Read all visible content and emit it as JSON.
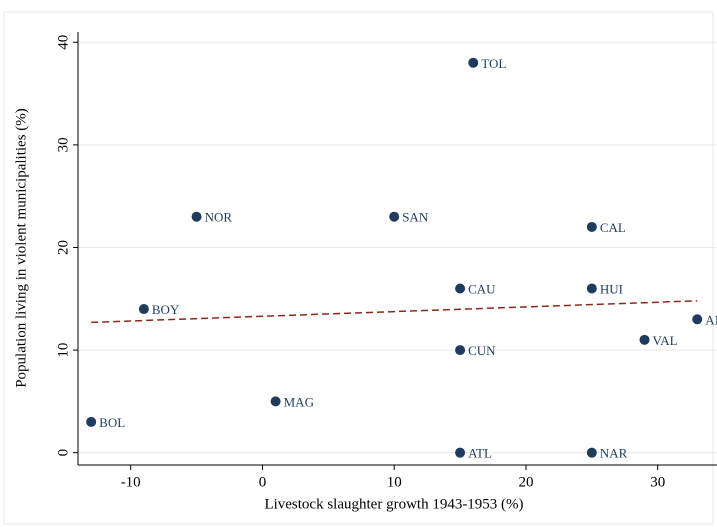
{
  "chart_data": {
    "type": "scatter",
    "xlabel": "Livestock slaughter growth 1943-1953 (%)",
    "ylabel": "Population living in violent municipalities (%)",
    "labels": [
      "TOL",
      "NOR",
      "SAN",
      "CAL",
      "CAU",
      "HUI",
      "BOY",
      "ANT",
      "VAL",
      "CUN",
      "MAG",
      "BOL",
      "ATL",
      "NAR"
    ],
    "x": [
      16,
      -5,
      10,
      25,
      15,
      25,
      -9,
      33,
      29,
      15,
      1,
      -13,
      15,
      25
    ],
    "values": [
      38,
      23,
      23,
      22,
      16,
      16,
      14,
      13,
      11,
      10,
      5,
      3,
      0,
      0
    ],
    "color": "#1f3b5e",
    "fit": {
      "x": [
        -13,
        33
      ],
      "values": [
        12.7,
        14.8
      ],
      "color": "#8b2a1c"
    },
    "xlim": [
      -14,
      34.5
    ],
    "ylim": [
      -1.2,
      41
    ],
    "xticks": [
      -10,
      0,
      10,
      20,
      30
    ],
    "yticks": [
      0,
      10,
      20,
      30,
      40
    ],
    "grid": true
  }
}
